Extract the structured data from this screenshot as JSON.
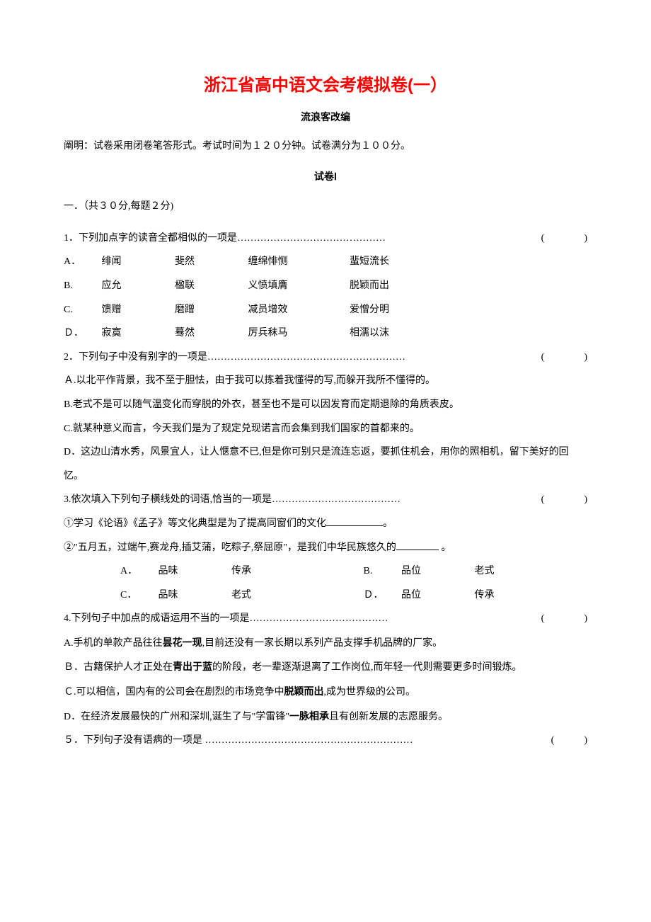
{
  "title": "浙江省高中语文会考模拟卷(一）",
  "subtitle": "流浪客改编",
  "instruction": "阐明：试卷采用闭卷笔答形式。考试时间为１２０分钟。试卷满分为１００分。",
  "section_header": "试卷Ⅰ",
  "section_title": "一．（共３０分,每题２分)",
  "q1": {
    "stem": "1．下列加点字的读音全都相似的一项是………………………………………",
    "paren": "(　　　　)",
    "options": [
      {
        "label": "A．",
        "col1": "绯闻",
        "col2": "斐然",
        "col3": "缠绵悱恻",
        "col4": "蜚短流长"
      },
      {
        "label": "B.",
        "col1": "应允",
        "col2": "楹联",
        "col3": "义愤填膺",
        "col4": "脱颖而出"
      },
      {
        "label": "C.",
        "col1": "馈赠",
        "col2": "磨蹭",
        "col3": "减员增效",
        "col4": "爱憎分明"
      },
      {
        "label": "Ｄ．",
        "col1": "寂寞",
        "col2": "蓦然",
        "col3": "厉兵秣马",
        "col4": "相濡以沫"
      }
    ]
  },
  "q2": {
    "stem": "2．下列句子中没有别字的一项是……………………………………………………",
    "paren": "(　　　　)",
    "options": [
      "Ａ.以北平作背景，我不至于胆怯，由于我可以拣着我懂得的写,而躲开我所不懂得的。",
      "B.老式不是可以随气温变化而穿脱的外衣，甚至也不是可以因发育而定期退除的角质表皮。",
      "C.就某种意义而言，今天我们是为了规定兑现诺言而会集到我们国家的首都来的。",
      "D．这边山清水秀，风景宜人，让人惬意不已,但是你可别只是流连忘返，要抓住机会，用你的照相机，留下美好的回忆。"
    ]
  },
  "q3": {
    "stem": "3.依次填入下列句子横线处的词语,恰当的一项是…………………………………",
    "paren": "(　　　　)",
    "line1_a": "①学习《论语》《孟子》等文化典型是为了提高同窗们的文化",
    "line1_b": "。",
    "line2_a": "②\"五月五，过端午,赛龙舟,插艾蒲，吃粽子,祭屈原\"，是我们中华民族悠久的",
    "line2_b": " 。",
    "options": [
      {
        "label": "A．",
        "val1": "品味",
        "val2": "传承",
        "labelR": "B.",
        "val1R": "品位",
        "val2R": "老式"
      },
      {
        "label": "C．",
        "val1": "品味",
        "val2": "老式",
        "labelR": "Ｄ．",
        "val1R": "品位",
        "val2R": "传承"
      }
    ]
  },
  "q4": {
    "stem": "4.下列句子中加点的成语运用不当的一项是……………………………………",
    "paren": "(　　　　)",
    "options": [
      {
        "pre": "A.手机的单款产品往往",
        "bold": "昙花一现",
        "post": ",目前还没有一家长期以系列产品支撑手机品牌的厂家。"
      },
      {
        "pre": "Ｂ．古籍保护人才正处在",
        "bold": "青出于蓝",
        "post": "的阶段，老一辈逐渐退离了工作岗位,而年轻一代则需要更多时间锻炼。"
      },
      {
        "pre": "Ｃ.可以相信，国内有的公司会在剧烈的市场竞争中",
        "bold": "脱颖而出",
        "post": ",成为世界级的公司。"
      },
      {
        "pre": "D．在经济发展最快的广州和深圳,诞生了与\"学雷锋\"",
        "bold": "一脉相承",
        "post": "且有创新发展的志愿服务。"
      }
    ]
  },
  "q5": {
    "stem": "５．下列句子没有语病的一项是  ………………………………………………………",
    "paren": "(　　　)"
  }
}
